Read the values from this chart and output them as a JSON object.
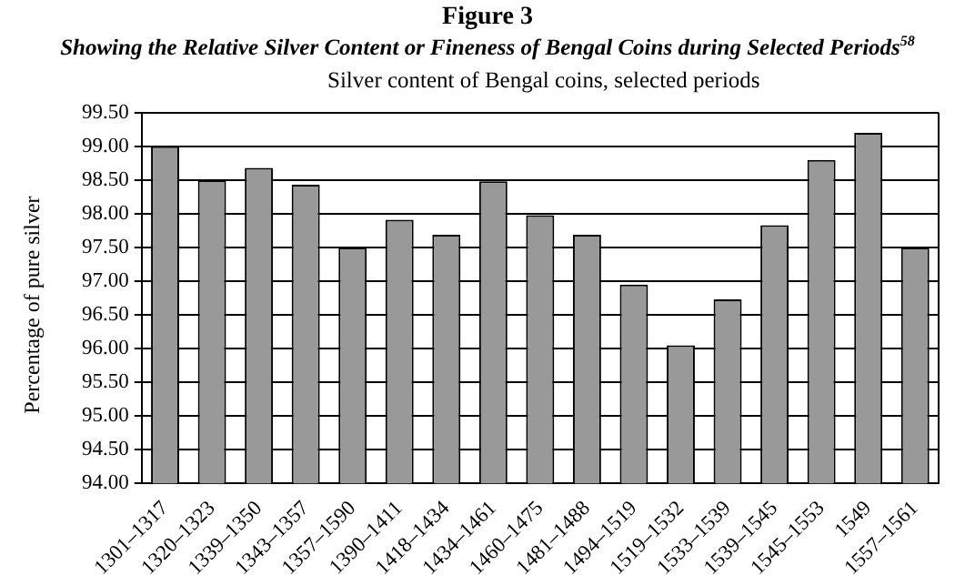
{
  "chart_data": {
    "type": "bar",
    "title": "Figure 3",
    "subtitle": "Showing the Relative Silver Content or Fineness of Bengal Coins during Selected Periods$^{58}$",
    "annotations": [
      "Silver content of Bengal coins, selected periods"
    ],
    "ylabel": "Percentage of pure silver",
    "categories": [
      "1301–1317",
      "1320–1323",
      "1339–1350",
      "1343–1357",
      "1357–1590",
      "1390–1411",
      "1418–1434",
      "1434–1461",
      "1460–1475",
      "1481–1488",
      "1494–1519",
      "1519–1532",
      "1533–1539",
      "1539–1545",
      "1545–1553",
      "1549",
      "1557–1561"
    ],
    "values": [
      99.0,
      98.5,
      98.68,
      98.43,
      97.5,
      97.91,
      97.69,
      98.48,
      97.98,
      97.69,
      96.95,
      96.05,
      96.73,
      97.83,
      98.8,
      99.2,
      97.5
    ],
    "color": "#999999",
    "ylim": [
      94,
      99.5
    ],
    "yticks": [
      {
        "value": 94,
        "label": "94.00"
      },
      {
        "value": 94.5,
        "label": "94.50"
      },
      {
        "value": 95,
        "label": "95.00"
      },
      {
        "value": 95.5,
        "label": "95.50"
      },
      {
        "value": 96,
        "label": "96.00"
      },
      {
        "value": 96.5,
        "label": "96.50"
      },
      {
        "value": 97,
        "label": "97.00"
      },
      {
        "value": 97.5,
        "label": "97.50"
      },
      {
        "value": 98,
        "label": "98.00"
      },
      {
        "value": 98.5,
        "label": "98.50"
      },
      {
        "value": 99,
        "label": "99.00"
      },
      {
        "value": 99.5,
        "label": "99.50"
      }
    ],
    "grid": "y"
  }
}
